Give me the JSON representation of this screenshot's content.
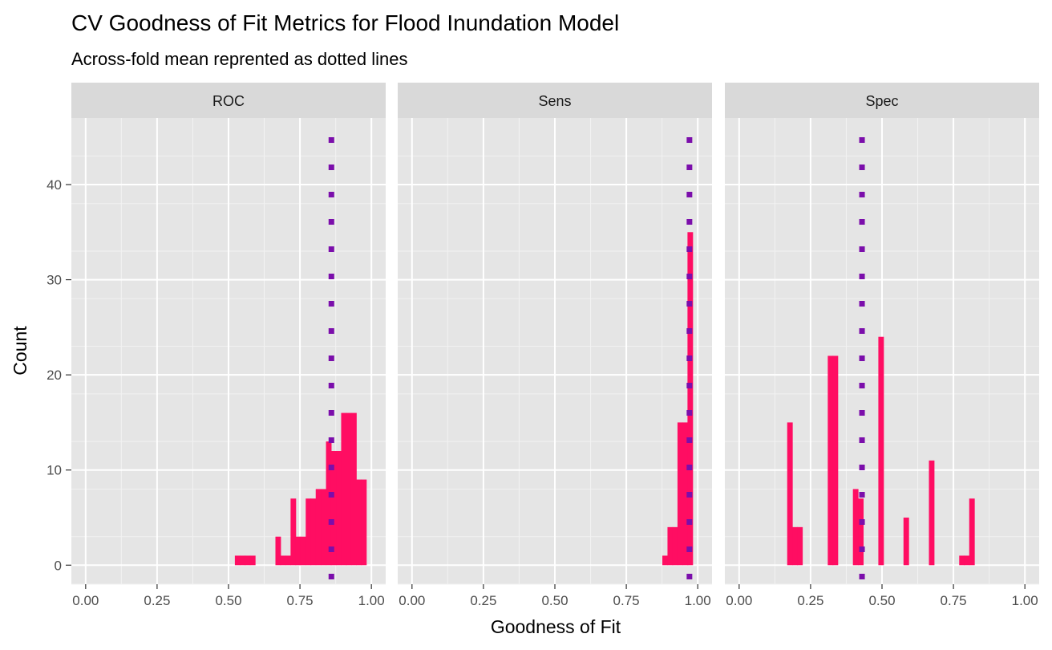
{
  "chart_data": {
    "type": "histogram",
    "title": "CV Goodness of Fit Metrics for Flood Inundation Model",
    "subtitle": "Across-fold mean reprented as dotted lines",
    "xlabel": "Goodness of Fit",
    "ylabel": "Count",
    "xlim": [
      -0.05,
      1.05
    ],
    "ylim": [
      -2,
      47
    ],
    "x_ticks": [
      0,
      0.25,
      0.5,
      0.75,
      1
    ],
    "x_tick_labels": [
      "0.00",
      "0.25",
      "0.50",
      "0.75",
      "1.00"
    ],
    "y_ticks": [
      0,
      10,
      20,
      30,
      40
    ],
    "y_tick_labels": [
      "0",
      "10",
      "20",
      "30",
      "40"
    ],
    "bin_width": 0.0177,
    "bar_color": "#ff0d62",
    "mean_line_color": "#7b0eab",
    "panel_background": "#e5e5e5",
    "strip_background": "#d9d9d9",
    "grid": true,
    "legend": "none",
    "panels": [
      {
        "label": "ROC",
        "mean": 0.86,
        "bins": [
          {
            "x": 0.531,
            "count": 1
          },
          {
            "x": 0.549,
            "count": 1
          },
          {
            "x": 0.566,
            "count": 1
          },
          {
            "x": 0.584,
            "count": 1
          },
          {
            "x": 0.673,
            "count": 3
          },
          {
            "x": 0.69,
            "count": 1
          },
          {
            "x": 0.708,
            "count": 1
          },
          {
            "x": 0.726,
            "count": 7
          },
          {
            "x": 0.743,
            "count": 3
          },
          {
            "x": 0.761,
            "count": 3
          },
          {
            "x": 0.779,
            "count": 7
          },
          {
            "x": 0.796,
            "count": 7
          },
          {
            "x": 0.814,
            "count": 8
          },
          {
            "x": 0.832,
            "count": 8
          },
          {
            "x": 0.85,
            "count": 13
          },
          {
            "x": 0.867,
            "count": 12
          },
          {
            "x": 0.885,
            "count": 12
          },
          {
            "x": 0.903,
            "count": 16
          },
          {
            "x": 0.92,
            "count": 16
          },
          {
            "x": 0.938,
            "count": 16
          },
          {
            "x": 0.956,
            "count": 9
          },
          {
            "x": 0.973,
            "count": 9
          }
        ]
      },
      {
        "label": "Sens",
        "mean": 0.971,
        "bins": [
          {
            "x": 0.885,
            "count": 1
          },
          {
            "x": 0.903,
            "count": 4
          },
          {
            "x": 0.92,
            "count": 4
          },
          {
            "x": 0.938,
            "count": 15
          },
          {
            "x": 0.956,
            "count": 15
          },
          {
            "x": 0.973,
            "count": 35
          }
        ]
      },
      {
        "label": "Spec",
        "mean": 0.43,
        "bins": [
          {
            "x": 0.177,
            "count": 15
          },
          {
            "x": 0.195,
            "count": 4
          },
          {
            "x": 0.212,
            "count": 4
          },
          {
            "x": 0.319,
            "count": 22
          },
          {
            "x": 0.336,
            "count": 22
          },
          {
            "x": 0.407,
            "count": 8
          },
          {
            "x": 0.425,
            "count": 7
          },
          {
            "x": 0.496,
            "count": 24
          },
          {
            "x": 0.584,
            "count": 5
          },
          {
            "x": 0.673,
            "count": 11
          },
          {
            "x": 0.779,
            "count": 1
          },
          {
            "x": 0.796,
            "count": 1
          },
          {
            "x": 0.814,
            "count": 7
          }
        ]
      }
    ]
  }
}
